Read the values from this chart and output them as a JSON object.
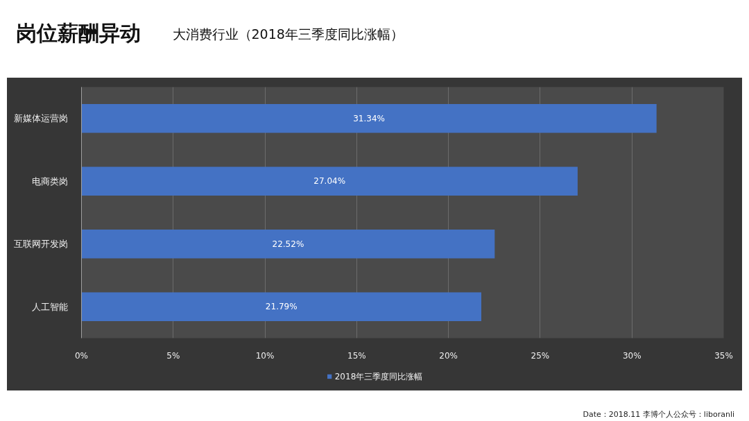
{
  "chart_data": {
    "type": "bar",
    "title": "岗位薪酬异动",
    "subtitle": "大消费行业（2018年三季度同比涨幅）",
    "orientation": "horizontal",
    "categories": [
      "新媒体运营岗",
      "电商类岗",
      "互联网开发岗",
      "人工智能"
    ],
    "series": [
      {
        "name": "2018年三季度同比涨幅",
        "color": "#4472c4",
        "values": [
          31.34,
          27.04,
          22.52,
          21.79
        ],
        "value_labels": [
          "31.34%",
          "27.04%",
          "22.52%",
          "21.79%"
        ]
      }
    ],
    "xlim": [
      0,
      35
    ],
    "xticks": [
      {
        "value": 0,
        "label": "0%"
      },
      {
        "value": 5,
        "label": "5%"
      },
      {
        "value": 10,
        "label": "10%"
      },
      {
        "value": 15,
        "label": "15%"
      },
      {
        "value": 20,
        "label": "20%"
      },
      {
        "value": 25,
        "label": "25%"
      },
      {
        "value": 30,
        "label": "30%"
      },
      {
        "value": 35,
        "label": "35%"
      }
    ],
    "grid": "x",
    "legend": "bottom",
    "annotations": [
      "Date：2018.11  李博个人公众号：liboranli"
    ]
  }
}
